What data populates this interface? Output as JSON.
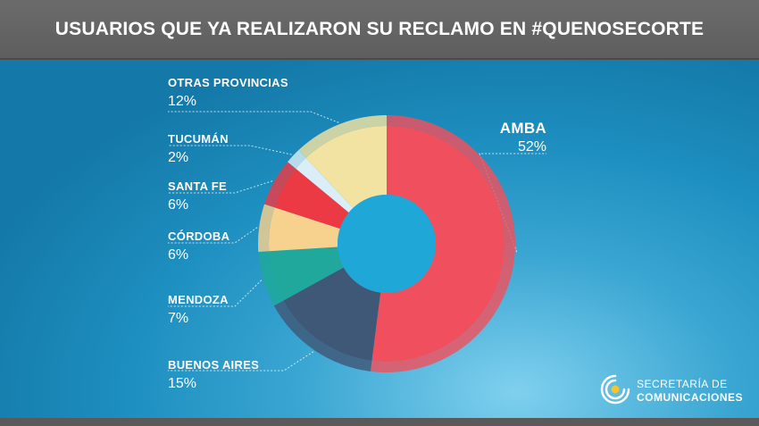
{
  "header": {
    "title": "USUARIOS QUE YA REALIZARON SU RECLAMO EN #QUENOSECORTE"
  },
  "chart_data": {
    "type": "pie",
    "categories": [
      "AMBA",
      "BUENOS AIRES",
      "MENDOZA",
      "CÓRDOBA",
      "SANTA FE",
      "TUCUMÁN",
      "OTRAS PROVINCIAS"
    ],
    "values": [
      52,
      15,
      7,
      6,
      6,
      2,
      12
    ],
    "labels": [
      "52%",
      "15%",
      "7%",
      "6%",
      "6%",
      "2%",
      "12%"
    ],
    "colors": [
      "#f0505d",
      "#3f5878",
      "#1fa89b",
      "#f7d18e",
      "#ec3a44",
      "#d9eef6",
      "#f3e3a2"
    ],
    "title": "USUARIOS QUE YA REALIZARON SU RECLAMO EN #QUENOSECORTE"
  },
  "logo": {
    "line1": "SECRETARÍA DE",
    "line2": "COMUNICACIONES",
    "icon": "secretaria-logo-icon"
  }
}
